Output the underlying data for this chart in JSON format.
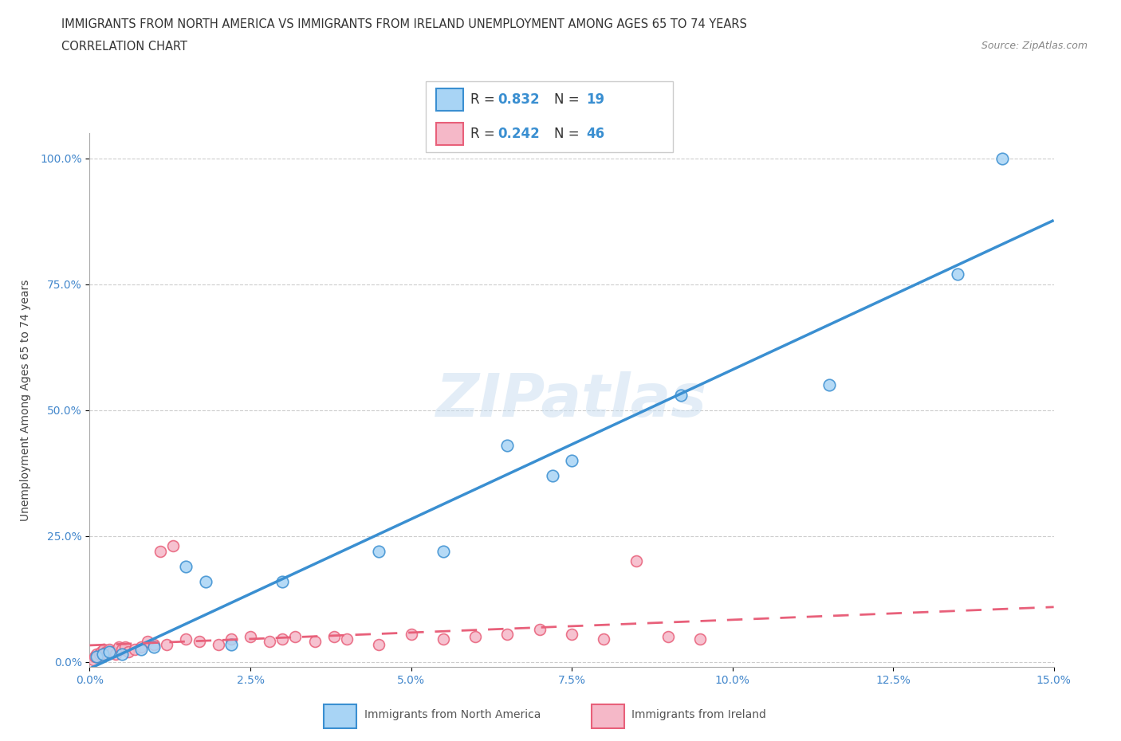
{
  "title_line1": "IMMIGRANTS FROM NORTH AMERICA VS IMMIGRANTS FROM IRELAND UNEMPLOYMENT AMONG AGES 65 TO 74 YEARS",
  "title_line2": "CORRELATION CHART",
  "source": "Source: ZipAtlas.com",
  "xlabel_ticks": [
    "0.0%",
    "2.5%",
    "5.0%",
    "7.5%",
    "10.0%",
    "12.5%",
    "15.0%"
  ],
  "xlabel_vals": [
    0.0,
    2.5,
    5.0,
    7.5,
    10.0,
    12.5,
    15.0
  ],
  "ylabel_ticks": [
    "0.0%",
    "25.0%",
    "50.0%",
    "75.0%",
    "100.0%"
  ],
  "ylabel_vals": [
    0.0,
    25.0,
    50.0,
    75.0,
    100.0
  ],
  "xlim": [
    0.0,
    15.0
  ],
  "ylim": [
    -1.0,
    105.0
  ],
  "ylabel": "Unemployment Among Ages 65 to 74 years",
  "watermark": "ZIPatlas",
  "north_america_color": "#a8d4f5",
  "ireland_color": "#f5b8c8",
  "north_america_line_color": "#3a8fd1",
  "ireland_line_color": "#e8607a",
  "R_north": 0.832,
  "N_north": 19,
  "R_ireland": 0.242,
  "N_ireland": 46,
  "north_america_x": [
    0.1,
    0.2,
    0.3,
    0.5,
    0.8,
    1.0,
    1.5,
    1.8,
    2.2,
    3.0,
    4.5,
    5.5,
    6.5,
    7.2,
    7.5,
    9.2,
    11.5,
    13.5,
    14.2
  ],
  "north_america_y": [
    1.0,
    1.5,
    2.0,
    1.5,
    2.5,
    3.0,
    19.0,
    16.0,
    3.5,
    16.0,
    22.0,
    22.0,
    43.0,
    37.0,
    40.0,
    53.0,
    55.0,
    77.0,
    100.0
  ],
  "ireland_x": [
    0.05,
    0.08,
    0.1,
    0.12,
    0.15,
    0.18,
    0.2,
    0.22,
    0.25,
    0.28,
    0.3,
    0.35,
    0.4,
    0.45,
    0.5,
    0.55,
    0.6,
    0.7,
    0.8,
    0.9,
    1.0,
    1.1,
    1.2,
    1.3,
    1.5,
    1.7,
    2.0,
    2.2,
    2.5,
    2.8,
    3.0,
    3.2,
    3.5,
    3.8,
    4.0,
    4.5,
    5.0,
    5.5,
    6.0,
    6.5,
    7.0,
    7.5,
    8.0,
    8.5,
    9.0,
    9.5
  ],
  "ireland_y": [
    0.5,
    1.0,
    1.5,
    1.0,
    1.5,
    2.0,
    1.5,
    2.5,
    2.0,
    1.5,
    2.5,
    2.0,
    1.5,
    3.0,
    2.5,
    3.0,
    2.0,
    2.5,
    3.0,
    4.0,
    3.5,
    22.0,
    3.5,
    23.0,
    4.5,
    4.0,
    3.5,
    4.5,
    5.0,
    4.0,
    4.5,
    5.0,
    4.0,
    5.0,
    4.5,
    3.5,
    5.5,
    4.5,
    5.0,
    5.5,
    6.5,
    5.5,
    4.5,
    20.0,
    5.0,
    4.5
  ]
}
